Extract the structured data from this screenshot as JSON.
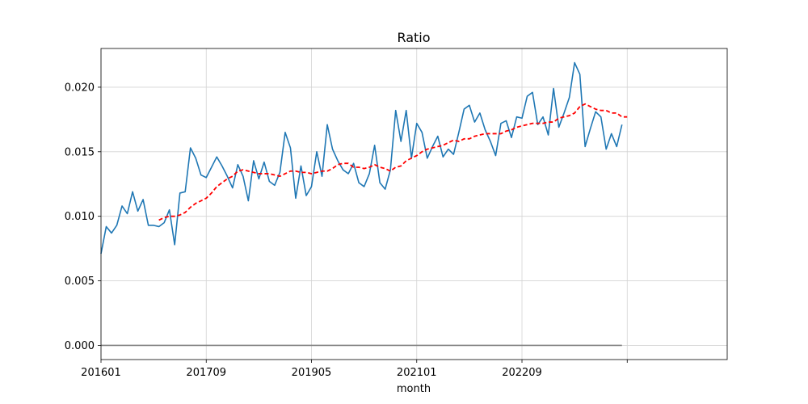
{
  "chart_data": {
    "type": "line",
    "title": "Ratio",
    "xlabel": "month",
    "ylabel": "",
    "grid": true,
    "xlim": [
      0,
      119
    ],
    "ylim": [
      -0.0011,
      0.023
    ],
    "x_ticks": [
      {
        "index": 0,
        "label": "201601"
      },
      {
        "index": 20,
        "label": "201709"
      },
      {
        "index": 40,
        "label": "201905"
      },
      {
        "index": 60,
        "label": "202101"
      },
      {
        "index": 80,
        "label": "202209"
      },
      {
        "index": 100,
        "label": ""
      }
    ],
    "y_ticks": [
      {
        "value": 0.0,
        "label": "0.000"
      },
      {
        "value": 0.005,
        "label": "0.005"
      },
      {
        "value": 0.01,
        "label": "0.010"
      },
      {
        "value": 0.015,
        "label": "0.015"
      },
      {
        "value": 0.02,
        "label": "0.020"
      }
    ],
    "series": [
      {
        "color": "#1f77b4",
        "style": "solid",
        "x_start": 0,
        "values": [
          0.0071,
          0.0092,
          0.0087,
          0.0093,
          0.0108,
          0.0102,
          0.0119,
          0.0104,
          0.0113,
          0.0093,
          0.0093,
          0.0092,
          0.0095,
          0.0105,
          0.0078,
          0.0118,
          0.0119,
          0.0153,
          0.0145,
          0.0132,
          0.013,
          0.0138,
          0.0146,
          0.0139,
          0.0131,
          0.0122,
          0.014,
          0.0131,
          0.0112,
          0.0143,
          0.0129,
          0.0142,
          0.0127,
          0.0124,
          0.0134,
          0.0165,
          0.0153,
          0.0114,
          0.0139,
          0.0116,
          0.0123,
          0.015,
          0.0131,
          0.0171,
          0.0152,
          0.0143,
          0.0136,
          0.0133,
          0.0141,
          0.0126,
          0.0123,
          0.0133,
          0.0155,
          0.0126,
          0.0121,
          0.0136,
          0.0182,
          0.0158,
          0.0182,
          0.0145,
          0.0172,
          0.0165,
          0.0145,
          0.0154,
          0.0162,
          0.0146,
          0.0152,
          0.0148,
          0.0165,
          0.0183,
          0.0186,
          0.0173,
          0.018,
          0.0167,
          0.0158,
          0.0147,
          0.0172,
          0.0174,
          0.0161,
          0.0177,
          0.0176,
          0.0193,
          0.0196,
          0.0171,
          0.0177,
          0.0163,
          0.0199,
          0.0169,
          0.018,
          0.0192,
          0.0219,
          0.021,
          0.0154,
          0.0168,
          0.0181,
          0.0177,
          0.0152,
          0.0164,
          0.0154,
          0.0171
        ]
      },
      {
        "color": "#ff0000",
        "style": "dashed",
        "x_start": 11,
        "values": [
          0.0097,
          0.0099,
          0.01,
          0.01,
          0.0101,
          0.0103,
          0.0107,
          0.011,
          0.0112,
          0.0114,
          0.0118,
          0.0123,
          0.0126,
          0.0129,
          0.0131,
          0.0135,
          0.0136,
          0.0135,
          0.0134,
          0.0133,
          0.0133,
          0.0133,
          0.0132,
          0.0131,
          0.0133,
          0.0135,
          0.0135,
          0.0134,
          0.0134,
          0.0133,
          0.0134,
          0.0135,
          0.0135,
          0.0137,
          0.014,
          0.0141,
          0.0141,
          0.0138,
          0.0138,
          0.0137,
          0.0138,
          0.014,
          0.0138,
          0.0137,
          0.0135,
          0.0138,
          0.0139,
          0.0143,
          0.0145,
          0.0147,
          0.015,
          0.0152,
          0.0153,
          0.0154,
          0.0155,
          0.0157,
          0.0159,
          0.0158,
          0.016,
          0.016,
          0.0162,
          0.0163,
          0.0164,
          0.0164,
          0.0164,
          0.0164,
          0.0166,
          0.0167,
          0.0169,
          0.017,
          0.0171,
          0.0172,
          0.0172,
          0.0172,
          0.0173,
          0.0173,
          0.0176,
          0.0177,
          0.0178,
          0.018,
          0.0185,
          0.0187,
          0.0185,
          0.0183,
          0.0182,
          0.0182,
          0.018,
          0.018,
          0.0177,
          0.0177
        ]
      },
      {
        "color": "#808080",
        "style": "solid",
        "x_start": 0,
        "constant": 0.0,
        "x_end": 99
      }
    ]
  }
}
